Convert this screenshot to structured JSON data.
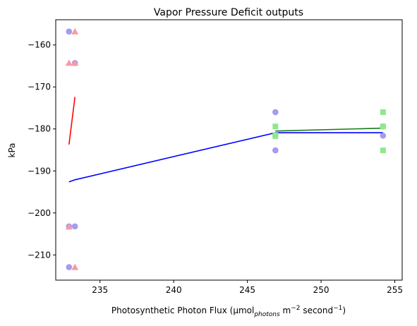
{
  "chart_data": {
    "type": "scatter",
    "title": "Vapor Pressure Deficit outputs",
    "xlabel": {
      "prefix": "Photosynthetic Photon Flux (µmol",
      "subscript": "photons",
      "middle": " m",
      "sup1": "−2",
      "middle2": " second",
      "sup2": "−1",
      "suffix": ")"
    },
    "ylabel": "kPa",
    "xlim": [
      232.0,
      255.5
    ],
    "ylim": [
      -216.0,
      -154.0
    ],
    "xticks": [
      235,
      240,
      245,
      250,
      255
    ],
    "yticks": [
      -160,
      -170,
      -180,
      -190,
      -200,
      -210
    ],
    "grid": false,
    "legend": "none",
    "scatter_series": [
      {
        "marker": "circle",
        "color": "#a39cf0",
        "points": [
          [
            232.9,
            -156.8
          ],
          [
            233.3,
            -164.3
          ],
          [
            232.9,
            -203.2
          ],
          [
            233.3,
            -203.2
          ],
          [
            232.9,
            -212.9
          ],
          [
            246.9,
            -176.0
          ],
          [
            246.9,
            -181.5
          ],
          [
            246.9,
            -185.1
          ],
          [
            254.2,
            -179.4
          ],
          [
            254.2,
            -181.6
          ]
        ]
      },
      {
        "marker": "triangle",
        "color": "#f79aa4",
        "points": [
          [
            233.3,
            -156.8
          ],
          [
            232.9,
            -164.3
          ],
          [
            233.3,
            -164.3
          ],
          [
            232.9,
            -203.3
          ],
          [
            233.3,
            -212.9
          ]
        ]
      },
      {
        "marker": "square",
        "color": "#8fe88c",
        "points": [
          [
            246.9,
            -179.4
          ],
          [
            246.9,
            -181.5
          ],
          [
            246.9,
            -181.7
          ],
          [
            254.2,
            -176.0
          ],
          [
            254.2,
            -179.4
          ],
          [
            254.2,
            -185.1
          ]
        ]
      }
    ],
    "line_series": [
      {
        "color": "#ff0000",
        "points": [
          [
            232.9,
            -183.7
          ],
          [
            233.3,
            -172.4
          ]
        ]
      },
      {
        "color": "#1a7a1a",
        "points": [
          [
            246.9,
            -180.5
          ],
          [
            254.2,
            -179.8
          ]
        ]
      },
      {
        "color": "#0000ff",
        "points": [
          [
            232.9,
            -192.6
          ],
          [
            233.3,
            -192.1
          ],
          [
            246.9,
            -180.9
          ],
          [
            254.2,
            -180.9
          ]
        ]
      }
    ]
  }
}
